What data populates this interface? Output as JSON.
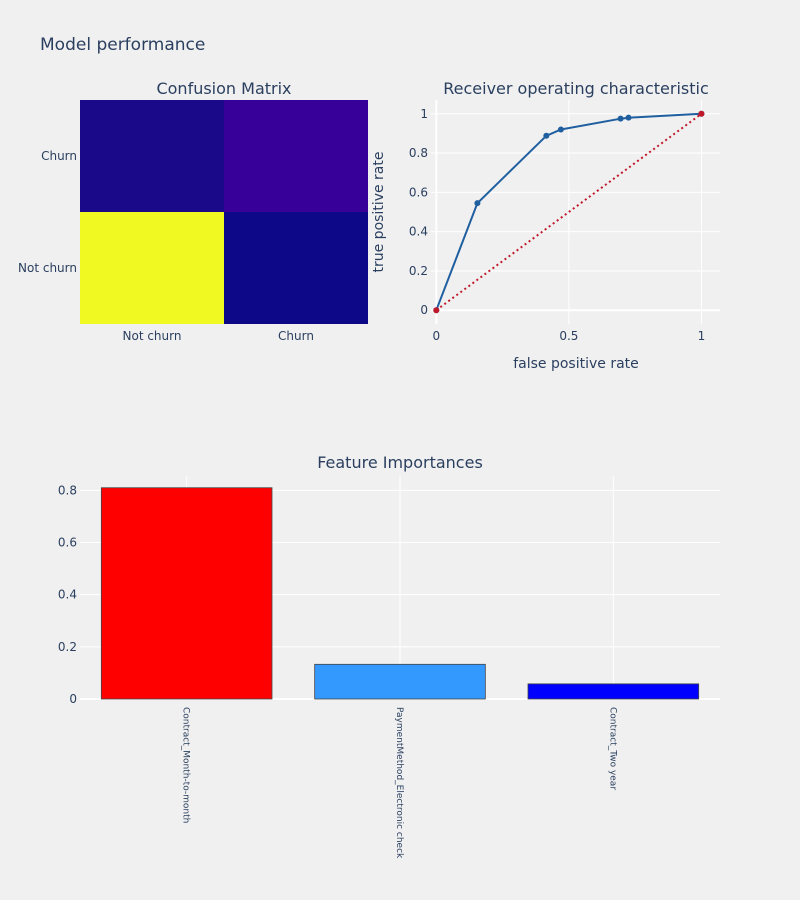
{
  "page_title": "Model performance",
  "chart_data": [
    {
      "type": "heatmap",
      "title": "Confusion Matrix",
      "x_categories": [
        "Not churn",
        "Churn"
      ],
      "y_categories": [
        "Not churn",
        "Churn"
      ],
      "colorscale": [
        "#0d0887",
        "#1a0a8a",
        "#370199",
        "#f0f921"
      ],
      "cell_colors": [
        [
          "#f0f921",
          "#0d0887"
        ],
        [
          "#1a0a8a",
          "#370199"
        ]
      ]
    },
    {
      "type": "line",
      "title": "Receiver operating characteristic",
      "xlabel": "false positive rate",
      "ylabel": "true positive rate",
      "xlim": [
        -0.02,
        1.07
      ],
      "ylim": [
        -0.07,
        1.07
      ],
      "x_ticks": [
        0,
        0.5,
        1
      ],
      "x_tick_labels": [
        "0",
        "0.5",
        "1"
      ],
      "y_ticks": [
        0,
        0.2,
        0.4,
        0.6,
        0.8,
        1
      ],
      "y_tick_labels": [
        "0",
        "0.2",
        "0.4",
        "0.6",
        "0.8",
        "1"
      ],
      "grid": true,
      "series": [
        {
          "color": "#1f5fa0",
          "x": [
            0,
            0.155,
            0.415,
            0.47,
            0.695,
            0.725,
            1
          ],
          "y": [
            0,
            0.545,
            0.888,
            0.92,
            0.975,
            0.98,
            1
          ]
        },
        {
          "color": "#c0182a",
          "dash": "dot",
          "x": [
            0,
            1
          ],
          "y": [
            0,
            1
          ]
        }
      ]
    },
    {
      "type": "bar",
      "title": "Feature Importances",
      "categories": [
        "Contract_Month-to-month",
        "PaymentMethod_Electronic check",
        "Contract_Two year"
      ],
      "values": [
        0.81,
        0.133,
        0.058
      ],
      "colors": [
        "#ff0000",
        "#3399ff",
        "#0000ff"
      ],
      "ylim": [
        0,
        0.855
      ],
      "y_ticks": [
        0,
        0.2,
        0.4,
        0.6,
        0.8
      ],
      "y_tick_labels": [
        "0",
        "0.2",
        "0.4",
        "0.6",
        "0.8"
      ],
      "grid": true
    }
  ]
}
